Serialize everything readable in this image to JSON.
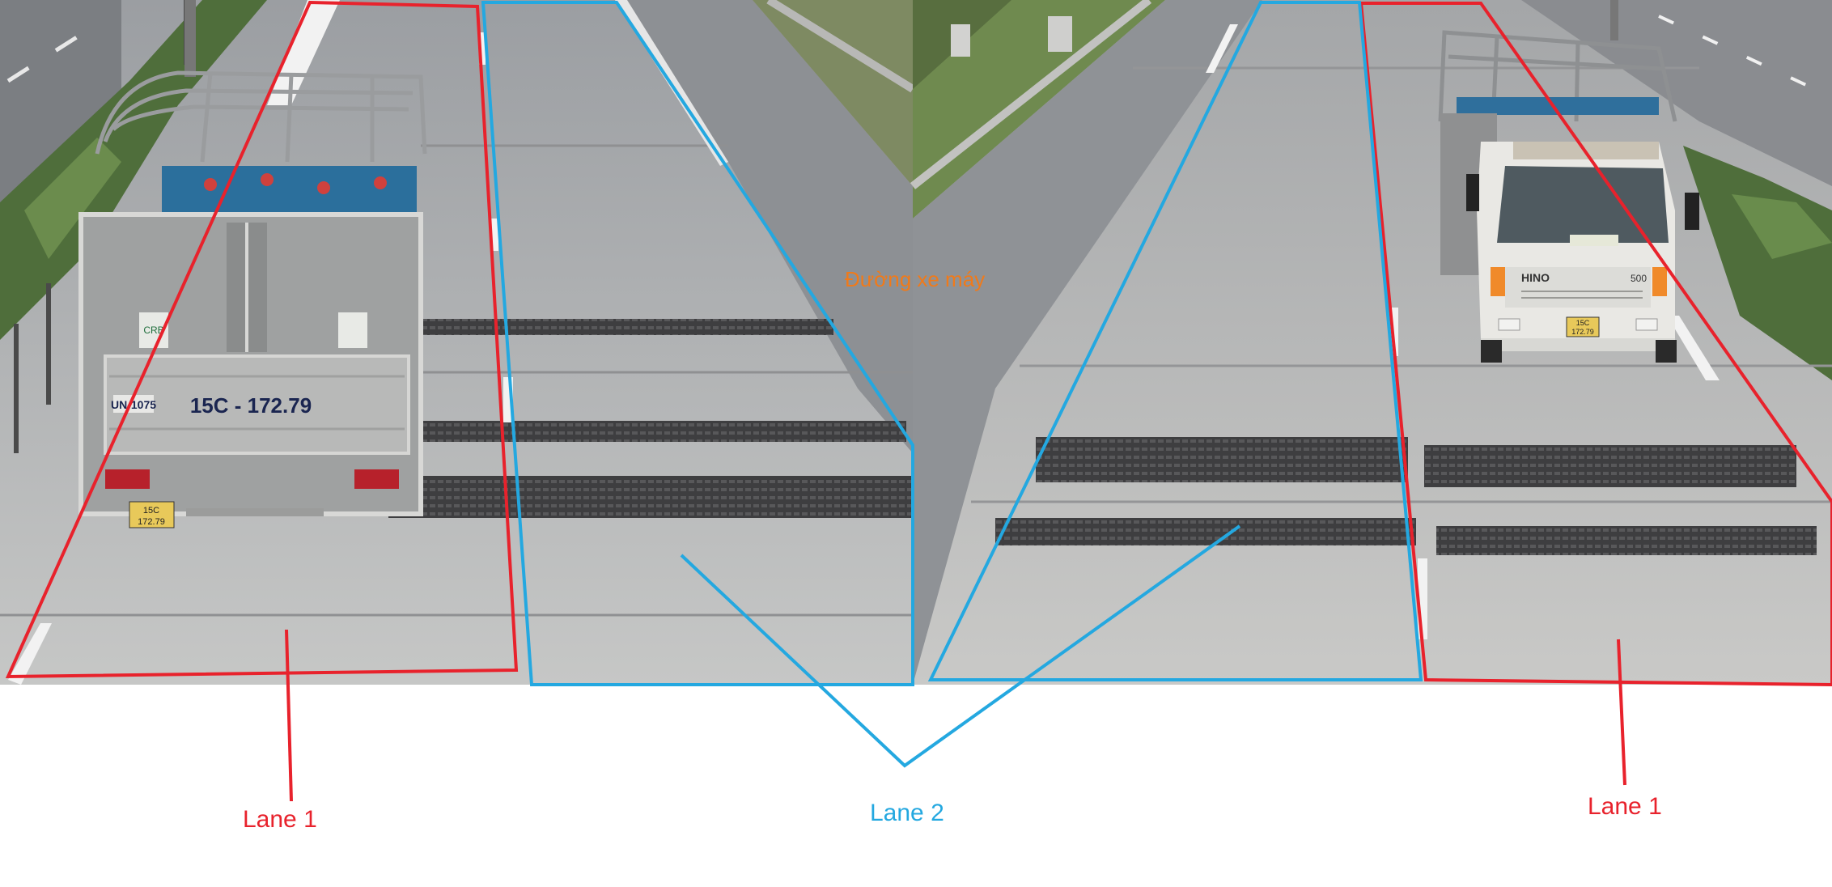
{
  "labels": {
    "lane1_left": "Lane 1",
    "lane2": "Lane 2",
    "lane1_right": "Lane 1",
    "motorbike_lane": "Đường xe máy"
  },
  "plates": {
    "left_rear_panel": "15C - 172.79",
    "left_rear_small_top": "15C",
    "left_rear_small_bottom": "172.79",
    "right_front_top": "15C",
    "right_front_bottom": "172.79"
  },
  "truck_text": {
    "left_code": "UN-1075",
    "left_brand": "CRB",
    "right_brand": "HINO",
    "right_model": "500"
  },
  "colors": {
    "lane1": "#e8222c",
    "lane2": "#24a8e0",
    "motorbike_label": "#f07a1a"
  }
}
